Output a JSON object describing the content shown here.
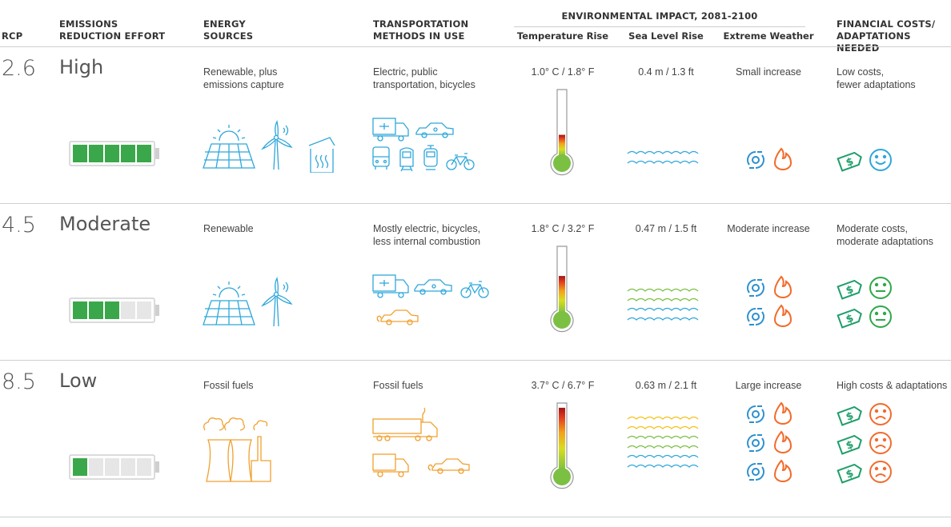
{
  "header": {
    "rcp": "RCP",
    "effort": [
      "EMISSIONS",
      "REDUCTION EFFORT"
    ],
    "energy": [
      "ENERGY",
      "SOURCES"
    ],
    "transport": [
      "TRANSPORTATION",
      "METHODS IN USE"
    ],
    "impact": "ENVIRONMENTAL IMPACT, 2081-2100",
    "temp": "Temperature Rise",
    "sea": "Sea Level Rise",
    "weather": "Extreme Weather",
    "costs": [
      "FINANCIAL COSTS/",
      "ADAPTATIONS NEEDED"
    ]
  },
  "rows": [
    {
      "rcp": "2.6",
      "effort": "High",
      "energy": [
        "Renewable, plus",
        "emissions capture"
      ],
      "transport": [
        "Electric, public",
        "transportation, bicycles"
      ],
      "temp": "1.0° C / 1.8° F",
      "sea": "0.4 m / 1.3 ft",
      "weather": "Small increase",
      "costs": [
        "Low costs,",
        "fewer adaptations"
      ],
      "battery_level": 5,
      "thermometer_fill": 0.3,
      "wave_rows": 2,
      "weather_icon_rows": 1,
      "cost_icon_rows": 1,
      "face": "happy",
      "energy_icons": [
        "solar-panel-icon",
        "wind-turbine-icon",
        "carbon-capture-icon"
      ],
      "transport_icons": [
        "electric-truck-icon",
        "electric-car-icon",
        "bus-icon",
        "train-icon",
        "tram-icon",
        "bicycle-icon"
      ]
    },
    {
      "rcp": "4.5",
      "effort": "Moderate",
      "energy": [
        "Renewable"
      ],
      "transport": [
        "Mostly electric, bicycles,",
        "less internal combustion"
      ],
      "temp": "1.8° C / 3.2° F",
      "sea": "0.47 m / 1.5 ft",
      "weather": "Moderate increase",
      "costs": [
        "Moderate costs,",
        "moderate adaptations"
      ],
      "battery_level": 3,
      "thermometer_fill": 0.55,
      "wave_rows": 4,
      "weather_icon_rows": 2,
      "cost_icon_rows": 2,
      "face": "neutral",
      "energy_icons": [
        "solar-panel-icon",
        "wind-turbine-icon"
      ],
      "transport_icons": [
        "electric-truck-icon",
        "electric-car-icon",
        "bicycle-icon",
        "car-icon"
      ]
    },
    {
      "rcp": "8.5",
      "effort": "Low",
      "energy": [
        "Fossil fuels"
      ],
      "transport": [
        "Fossil fuels"
      ],
      "temp": "3.7° C / 6.7° F",
      "sea": "0.63 m / 2.1 ft",
      "weather": "Large increase",
      "costs": [
        "High costs & adaptations"
      ],
      "battery_level": 1,
      "thermometer_fill": 0.95,
      "wave_rows": 6,
      "weather_icon_rows": 3,
      "cost_icon_rows": 3,
      "face": "sad",
      "energy_icons": [
        "power-plant-icon"
      ],
      "transport_icons": [
        "semi-truck-icon",
        "truck-icon",
        "car-icon"
      ]
    }
  ],
  "colors": {
    "battery": "#3aa84a",
    "renewable": "#2fa7db",
    "fossil": "#f0a030",
    "fire": "#f26b2c",
    "cyclone": "#2b8fd0",
    "money": "#1f9e6a",
    "happy": "#2fa7db",
    "neutral": "#2fa84a",
    "sad": "#f26b2c"
  }
}
